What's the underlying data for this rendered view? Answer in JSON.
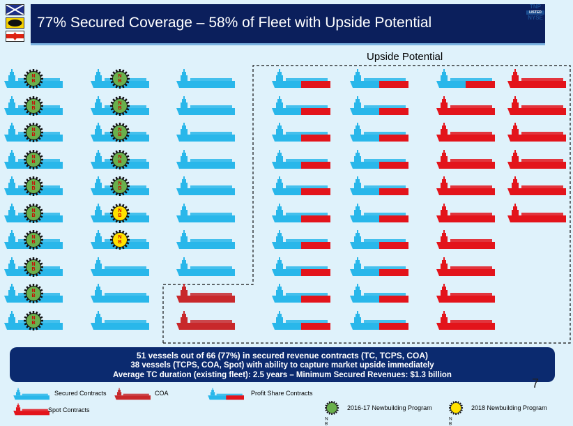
{
  "header": {
    "title": "77% Secured Coverage – 58% of Fleet with Upside Potential",
    "logo": {
      "line1": "TNP",
      "line2": "LISTED",
      "line3": "NYSE"
    }
  },
  "upside_label": "Upside Potential",
  "badge_text": {
    "n": "N",
    "b": "B"
  },
  "colors": {
    "secured": "#29b7ea",
    "spot": "#e3141b",
    "coa": "#c8282b",
    "badge_2016_17": "#6ab04c",
    "badge_2018": "#ffe100",
    "banner": "#0b1f5c"
  },
  "fleet": {
    "columns": [
      {
        "rows": [
          "secured-nb16",
          "secured-nb16",
          "secured-nb16",
          "secured-nb16",
          "secured-nb16",
          "secured-nb16",
          "secured-nb16",
          "secured-nb16",
          "secured-nb16",
          "secured-nb16"
        ]
      },
      {
        "rows": [
          "secured-nb16",
          "secured-nb16",
          "secured-nb16",
          "secured-nb16",
          "secured-nb16",
          "secured-nb18",
          "secured-nb18",
          "secured",
          "secured",
          "secured"
        ]
      },
      {
        "rows": [
          "secured",
          "secured",
          "secured",
          "secured",
          "secured",
          "secured",
          "secured",
          "secured",
          "coa",
          "coa"
        ]
      },
      {
        "rows": [
          "profit",
          "profit",
          "profit",
          "profit",
          "profit",
          "profit",
          "profit",
          "profit",
          "profit",
          "profit"
        ]
      },
      {
        "rows": [
          "profit",
          "profit",
          "profit",
          "profit",
          "profit",
          "profit",
          "profit",
          "profit",
          "profit",
          "profit"
        ]
      },
      {
        "rows": [
          "profit",
          "spot",
          "spot",
          "spot",
          "spot",
          "spot",
          "spot",
          "spot",
          "spot",
          "spot"
        ]
      },
      {
        "rows": [
          "spot",
          "spot",
          "spot",
          "spot",
          "spot",
          "spot"
        ]
      }
    ]
  },
  "summary": {
    "line1": "51 vessels out of 66 (77%) in secured revenue contracts (TC, TCPS, COA)",
    "line2": "38 vessels (TCPS, COA, Spot) with ability to capture market upside immediately",
    "line3": "Average TC duration (existing fleet): 2.5 years – Minimum Secured Revenues: $1.3 billion"
  },
  "page_number": "7",
  "legend": {
    "secured": "Secured  Contracts",
    "coa": "COA",
    "profit": "Profit Share Contracts",
    "spot": "Spot Contracts",
    "nb16": "2016-17 Newbuilding Program",
    "nb18": "2018 Newbuilding Program"
  }
}
